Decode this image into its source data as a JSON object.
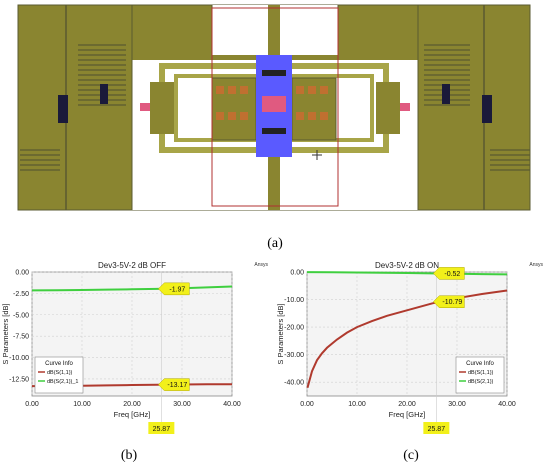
{
  "figure": {
    "panel_a_label": "(a)",
    "panel_b_label": "(b)",
    "panel_c_label": "(c)"
  },
  "layout_image": {
    "description_colors": {
      "background": "#ffffff",
      "metal": "#8a8530",
      "metal_light": "#a8a548",
      "trace": "#5a5a30",
      "via_blue": "#5a5aff",
      "highlight_pink": "#e05a80",
      "outline_red": "#b03030"
    }
  },
  "chart_data": [
    {
      "type": "line",
      "title": "Dev3-5V-2 dB OFF",
      "brand": "Ansys",
      "xlabel": "Freq [GHz]",
      "ylabel": "S Parameters [dB]",
      "xlim": [
        0,
        40
      ],
      "ylim": [
        -14.5,
        0
      ],
      "xticks": [
        "0.00",
        "10.00",
        "20.00",
        "30.00",
        "40.00"
      ],
      "yticks": [
        "0.00",
        "-2.50",
        "-5.00",
        "-7.50",
        "-10.00",
        "-12.50"
      ],
      "ytick_values": [
        0,
        -2.5,
        -5,
        -7.5,
        -10,
        -12.5
      ],
      "xtick_values": [
        0,
        10,
        20,
        30,
        40
      ],
      "grid": true,
      "legend_title": "Curve Info",
      "legend_placement": "bottom-left",
      "series": [
        {
          "name": "dB(S(1,1))",
          "color": "#b03a2e",
          "x": [
            0,
            5,
            10,
            15,
            20,
            25,
            30,
            35,
            40
          ],
          "y": [
            -13.35,
            -13.33,
            -13.3,
            -13.26,
            -13.22,
            -13.18,
            -13.15,
            -13.13,
            -13.12
          ]
        },
        {
          "name": "dB(S(2,1))_1",
          "color": "#3fcf3f",
          "x": [
            0,
            5,
            10,
            15,
            20,
            25,
            30,
            35,
            40
          ],
          "y": [
            -2.15,
            -2.13,
            -2.1,
            -2.06,
            -2.02,
            -1.97,
            -1.9,
            -1.8,
            -1.7
          ]
        }
      ],
      "annotations": [
        {
          "text": "-1.97",
          "x": 25.87,
          "y": -1.97
        },
        {
          "text": "-13.17",
          "x": 25.87,
          "y": -13.17
        }
      ],
      "marker_x_label": "25.87",
      "marker_x": 25.87
    },
    {
      "type": "line",
      "title": "Dev3-5V-2 dB ON",
      "brand": "Ansys",
      "xlabel": "Freq [GHz]",
      "ylabel": "S Parameters [dB]",
      "xlim": [
        0,
        40
      ],
      "ylim": [
        -45,
        0
      ],
      "xticks": [
        "0.00",
        "10.00",
        "20.00",
        "30.00",
        "40.00"
      ],
      "yticks": [
        "0.00",
        "-10.00",
        "-20.00",
        "-30.00",
        "-40.00"
      ],
      "ytick_values": [
        0,
        -10,
        -20,
        -30,
        -40
      ],
      "xtick_values": [
        0,
        10,
        20,
        30,
        40
      ],
      "grid": true,
      "legend_title": "Curve Info",
      "legend_placement": "bottom-right",
      "series": [
        {
          "name": "dB(S(1,1))",
          "color": "#b03a2e",
          "x": [
            0.1,
            1,
            2,
            3,
            4,
            6,
            8,
            10,
            13,
            16,
            20,
            25,
            30,
            35,
            40
          ],
          "y": [
            -42,
            -36,
            -32,
            -29.5,
            -27.5,
            -24.5,
            -22,
            -20,
            -17.8,
            -15.9,
            -13.9,
            -11.4,
            -9.5,
            -8,
            -6.7
          ]
        },
        {
          "name": "dB(S(2,1))",
          "color": "#3fcf3f",
          "x": [
            0,
            5,
            10,
            15,
            20,
            25,
            30,
            35,
            40
          ],
          "y": [
            -0.05,
            -0.1,
            -0.18,
            -0.27,
            -0.37,
            -0.5,
            -0.62,
            -0.75,
            -0.88
          ]
        }
      ],
      "annotations": [
        {
          "text": "-0.52",
          "x": 25.87,
          "y": -0.52
        },
        {
          "text": "-10.79",
          "x": 25.87,
          "y": -10.79
        }
      ],
      "marker_x_label": "25.87",
      "marker_x": 25.87
    }
  ]
}
